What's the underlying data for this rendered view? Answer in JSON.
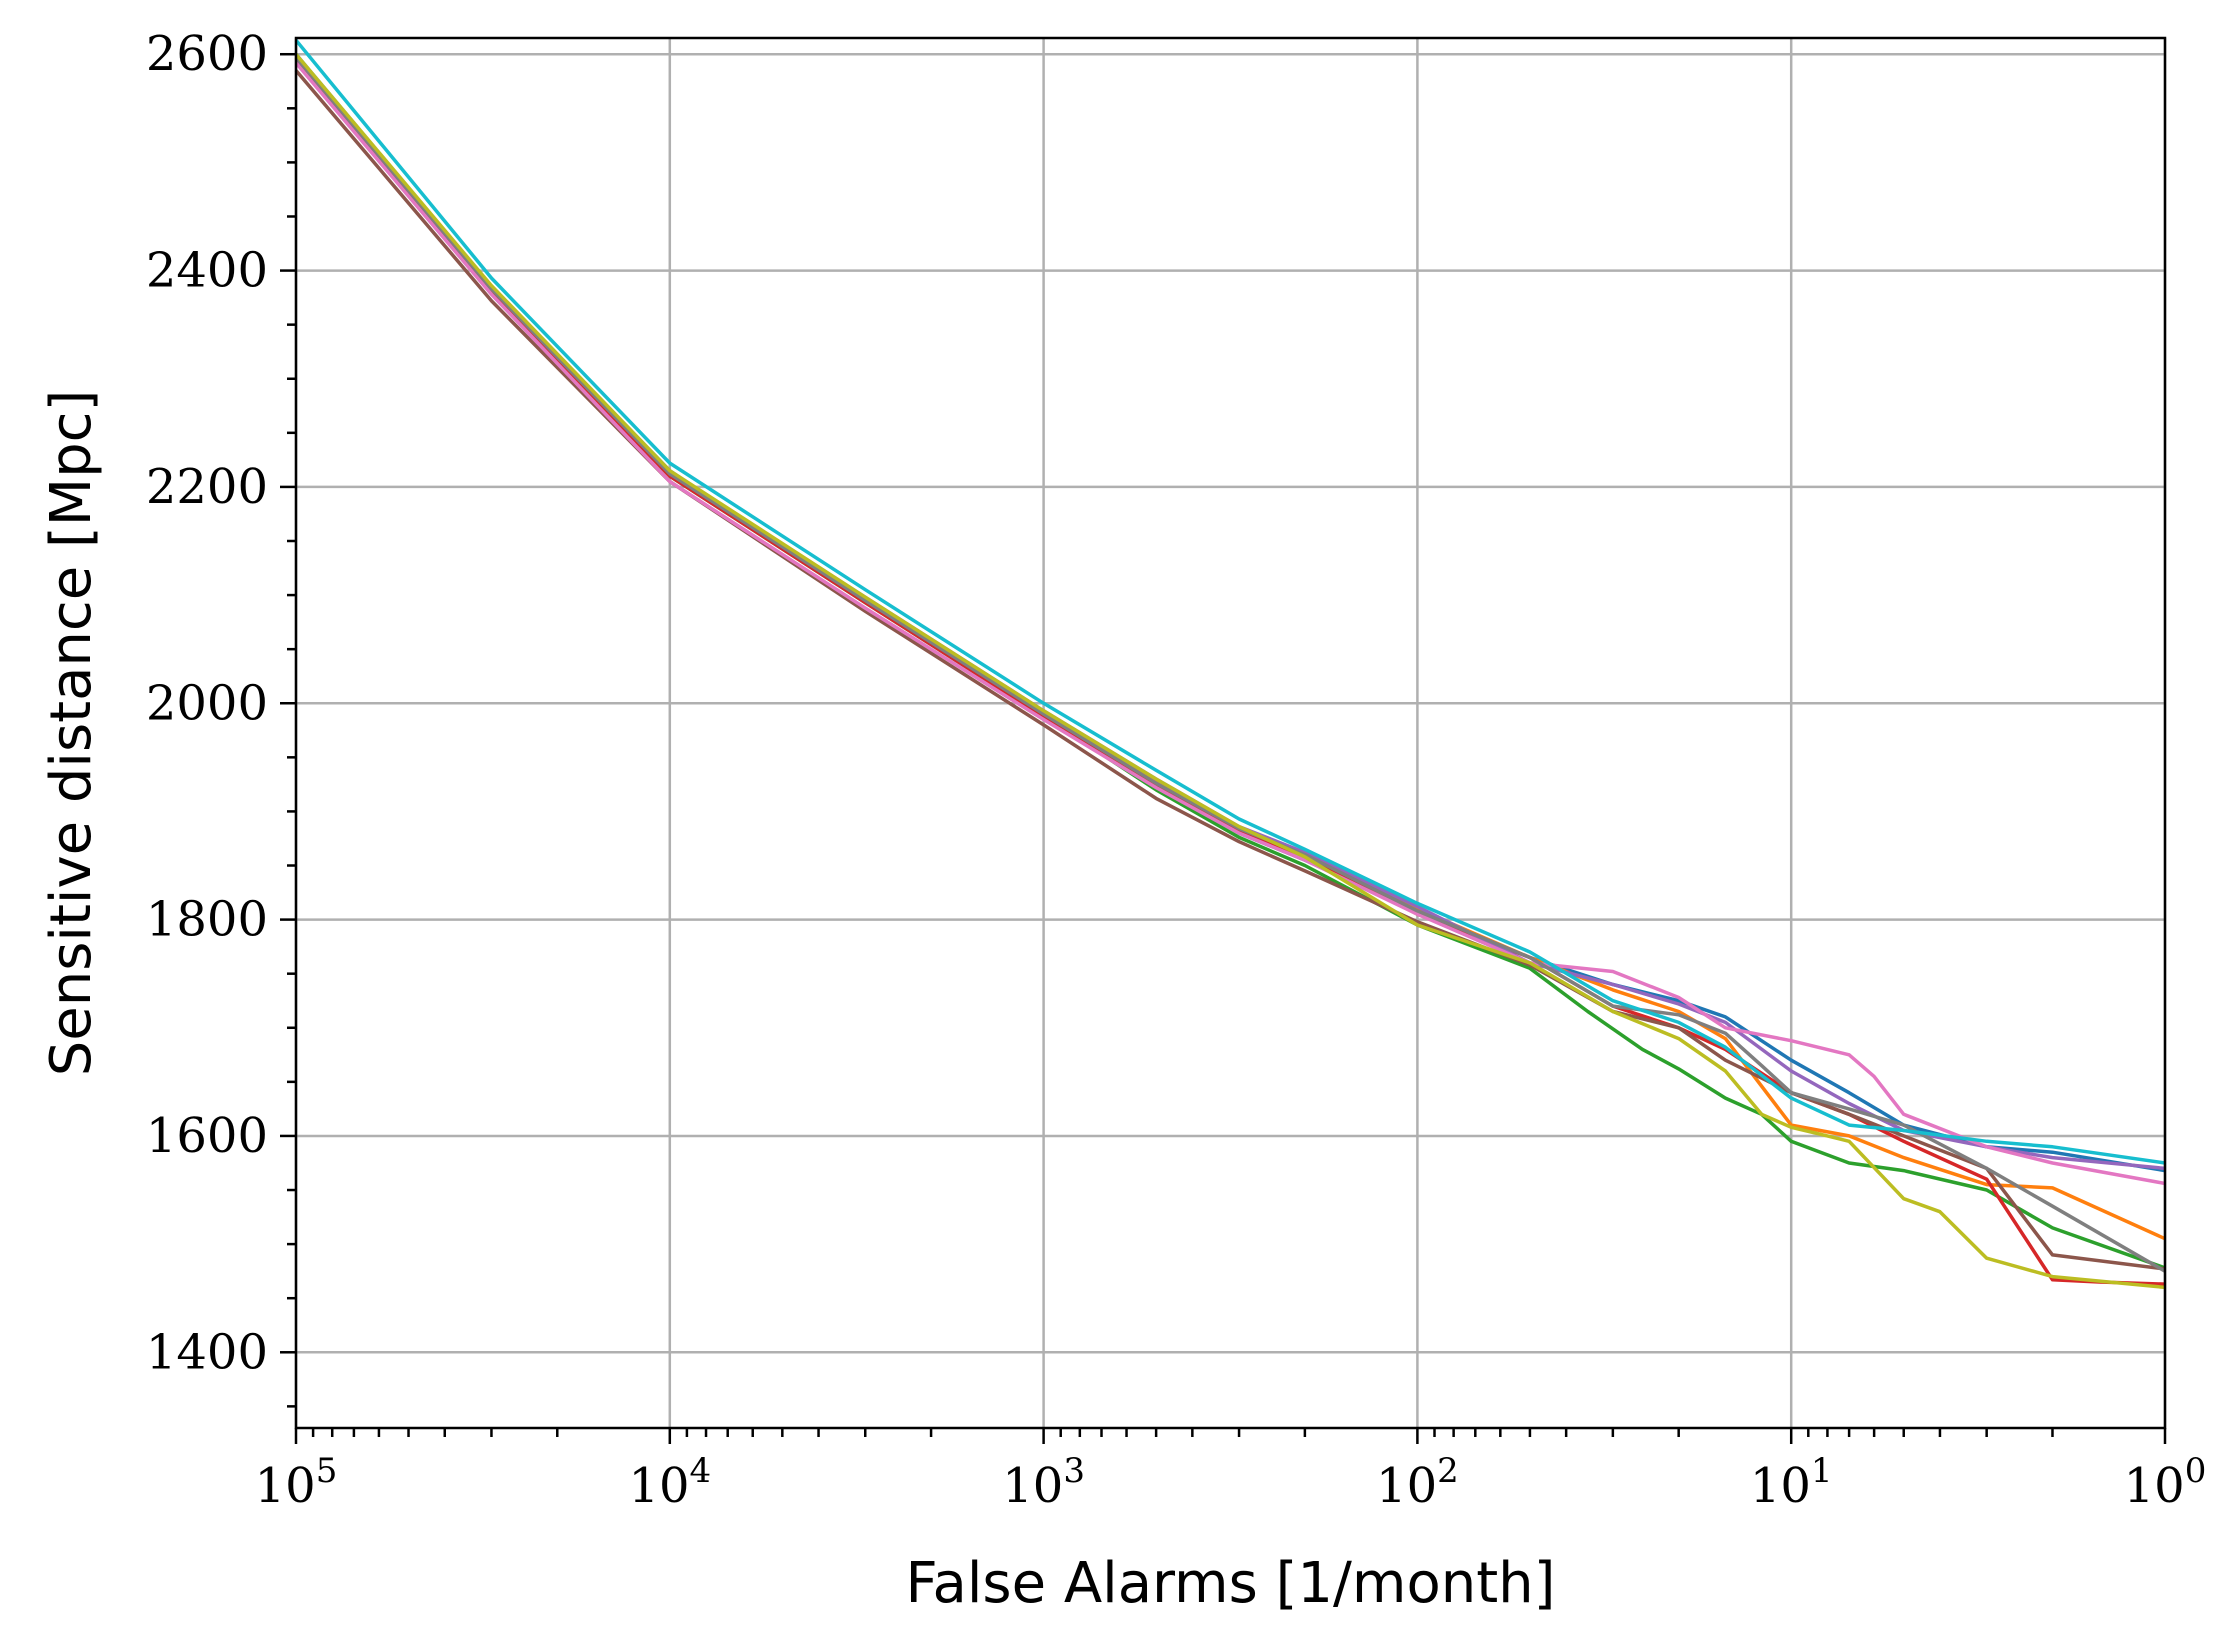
{
  "chart_data": {
    "type": "line",
    "xlabel": "False Alarms [1/month]",
    "ylabel": "Sensitive distance [Mpc]",
    "x_scale": "log",
    "x_reversed": true,
    "xlim": [
      100000,
      1
    ],
    "ylim": [
      1330,
      2615
    ],
    "x_ticks": [
      100000,
      10000,
      1000,
      100,
      10,
      1
    ],
    "x_tick_labels": [
      {
        "base": "10",
        "exp": "5"
      },
      {
        "base": "10",
        "exp": "4"
      },
      {
        "base": "10",
        "exp": "3"
      },
      {
        "base": "10",
        "exp": "2"
      },
      {
        "base": "10",
        "exp": "1"
      },
      {
        "base": "10",
        "exp": "0"
      }
    ],
    "y_ticks": [
      1400,
      1600,
      1800,
      2000,
      2200,
      2400,
      2600
    ],
    "y_tick_labels": [
      "1400",
      "1600",
      "1800",
      "2000",
      "2200",
      "2400",
      "2600"
    ],
    "grid": true,
    "series": [
      {
        "color": "#1f77b4",
        "x": [
          100000,
          30000,
          10000,
          3000,
          1000,
          500,
          300,
          200,
          100,
          50,
          30,
          20,
          15,
          10,
          7,
          5,
          3,
          2,
          1
        ],
        "y": [
          2600,
          2385,
          2215,
          2095,
          1990,
          1925,
          1880,
          1855,
          1808,
          1765,
          1740,
          1725,
          1710,
          1670,
          1640,
          1610,
          1590,
          1585,
          1568
        ]
      },
      {
        "color": "#ff7f0e",
        "x": [
          100000,
          30000,
          10000,
          3000,
          1000,
          500,
          300,
          200,
          100,
          50,
          30,
          20,
          15,
          10,
          7,
          5,
          3,
          2,
          1
        ],
        "y": [
          2598,
          2382,
          2212,
          2097,
          1992,
          1928,
          1885,
          1860,
          1810,
          1765,
          1735,
          1715,
          1690,
          1610,
          1600,
          1580,
          1555,
          1552,
          1505
        ]
      },
      {
        "color": "#2ca02c",
        "x": [
          100000,
          30000,
          10000,
          3000,
          1000,
          500,
          300,
          200,
          100,
          50,
          35,
          25,
          20,
          15,
          12,
          10,
          7,
          5,
          3,
          2,
          1
        ],
        "y": [
          2597,
          2380,
          2210,
          2093,
          1988,
          1920,
          1876,
          1850,
          1795,
          1755,
          1715,
          1680,
          1662,
          1635,
          1620,
          1595,
          1575,
          1568,
          1550,
          1515,
          1478
        ]
      },
      {
        "color": "#d62728",
        "x": [
          100000,
          30000,
          10000,
          3000,
          1000,
          500,
          300,
          200,
          100,
          50,
          30,
          20,
          15,
          10,
          7,
          5,
          3,
          2,
          1.5,
          1
        ],
        "y": [
          2596,
          2380,
          2210,
          2093,
          1988,
          1925,
          1882,
          1858,
          1805,
          1765,
          1720,
          1700,
          1680,
          1640,
          1620,
          1595,
          1560,
          1467,
          1465,
          1463
        ]
      },
      {
        "color": "#9467bd",
        "x": [
          100000,
          30000,
          10000,
          3000,
          1000,
          500,
          300,
          200,
          100,
          50,
          30,
          20,
          15,
          10,
          7,
          5,
          3,
          2,
          1
        ],
        "y": [
          2599,
          2384,
          2214,
          2098,
          1993,
          1930,
          1886,
          1862,
          1812,
          1760,
          1740,
          1722,
          1705,
          1660,
          1630,
          1605,
          1590,
          1580,
          1570
        ]
      },
      {
        "color": "#8c564b",
        "x": [
          100000,
          30000,
          10000,
          3000,
          1000,
          500,
          300,
          200,
          100,
          50,
          30,
          20,
          15,
          10,
          7,
          5,
          3,
          2,
          1
        ],
        "y": [
          2585,
          2372,
          2205,
          2085,
          1980,
          1912,
          1872,
          1845,
          1798,
          1758,
          1715,
          1700,
          1670,
          1640,
          1620,
          1600,
          1570,
          1490,
          1477
        ]
      },
      {
        "color": "#e377c2",
        "x": [
          100000,
          30000,
          10000,
          3000,
          1000,
          500,
          300,
          200,
          100,
          50,
          30,
          20,
          15,
          10,
          7,
          6,
          5,
          3,
          2,
          1
        ],
        "y": [
          2592,
          2378,
          2205,
          2088,
          1985,
          1922,
          1880,
          1855,
          1805,
          1760,
          1752,
          1728,
          1700,
          1688,
          1675,
          1655,
          1620,
          1590,
          1575,
          1556
        ]
      },
      {
        "color": "#7f7f7f",
        "x": [
          100000,
          30000,
          10000,
          3000,
          1000,
          500,
          300,
          200,
          100,
          50,
          30,
          20,
          15,
          12,
          10,
          7,
          5,
          3,
          2,
          1
        ],
        "y": [
          2597,
          2383,
          2212,
          2095,
          1990,
          1926,
          1884,
          1860,
          1808,
          1765,
          1720,
          1712,
          1695,
          1665,
          1640,
          1625,
          1610,
          1570,
          1535,
          1475
        ]
      },
      {
        "color": "#bcbd22",
        "x": [
          100000,
          30000,
          10000,
          3000,
          1000,
          500,
          300,
          200,
          100,
          50,
          30,
          20,
          15,
          12,
          10,
          8,
          7,
          5,
          4,
          3,
          2,
          1
        ],
        "y": [
          2600,
          2386,
          2215,
          2098,
          1993,
          1930,
          1886,
          1858,
          1795,
          1760,
          1715,
          1690,
          1660,
          1620,
          1608,
          1600,
          1595,
          1542,
          1530,
          1487,
          1470,
          1460
        ]
      },
      {
        "color": "#17becf",
        "x": [
          100000,
          30000,
          10000,
          3000,
          1000,
          500,
          300,
          200,
          100,
          50,
          30,
          20,
          15,
          10,
          7,
          5,
          3,
          2,
          1
        ],
        "y": [
          2613,
          2393,
          2222,
          2105,
          2000,
          1938,
          1893,
          1865,
          1815,
          1770,
          1725,
          1705,
          1682,
          1635,
          1610,
          1605,
          1595,
          1590,
          1575
        ]
      }
    ]
  }
}
